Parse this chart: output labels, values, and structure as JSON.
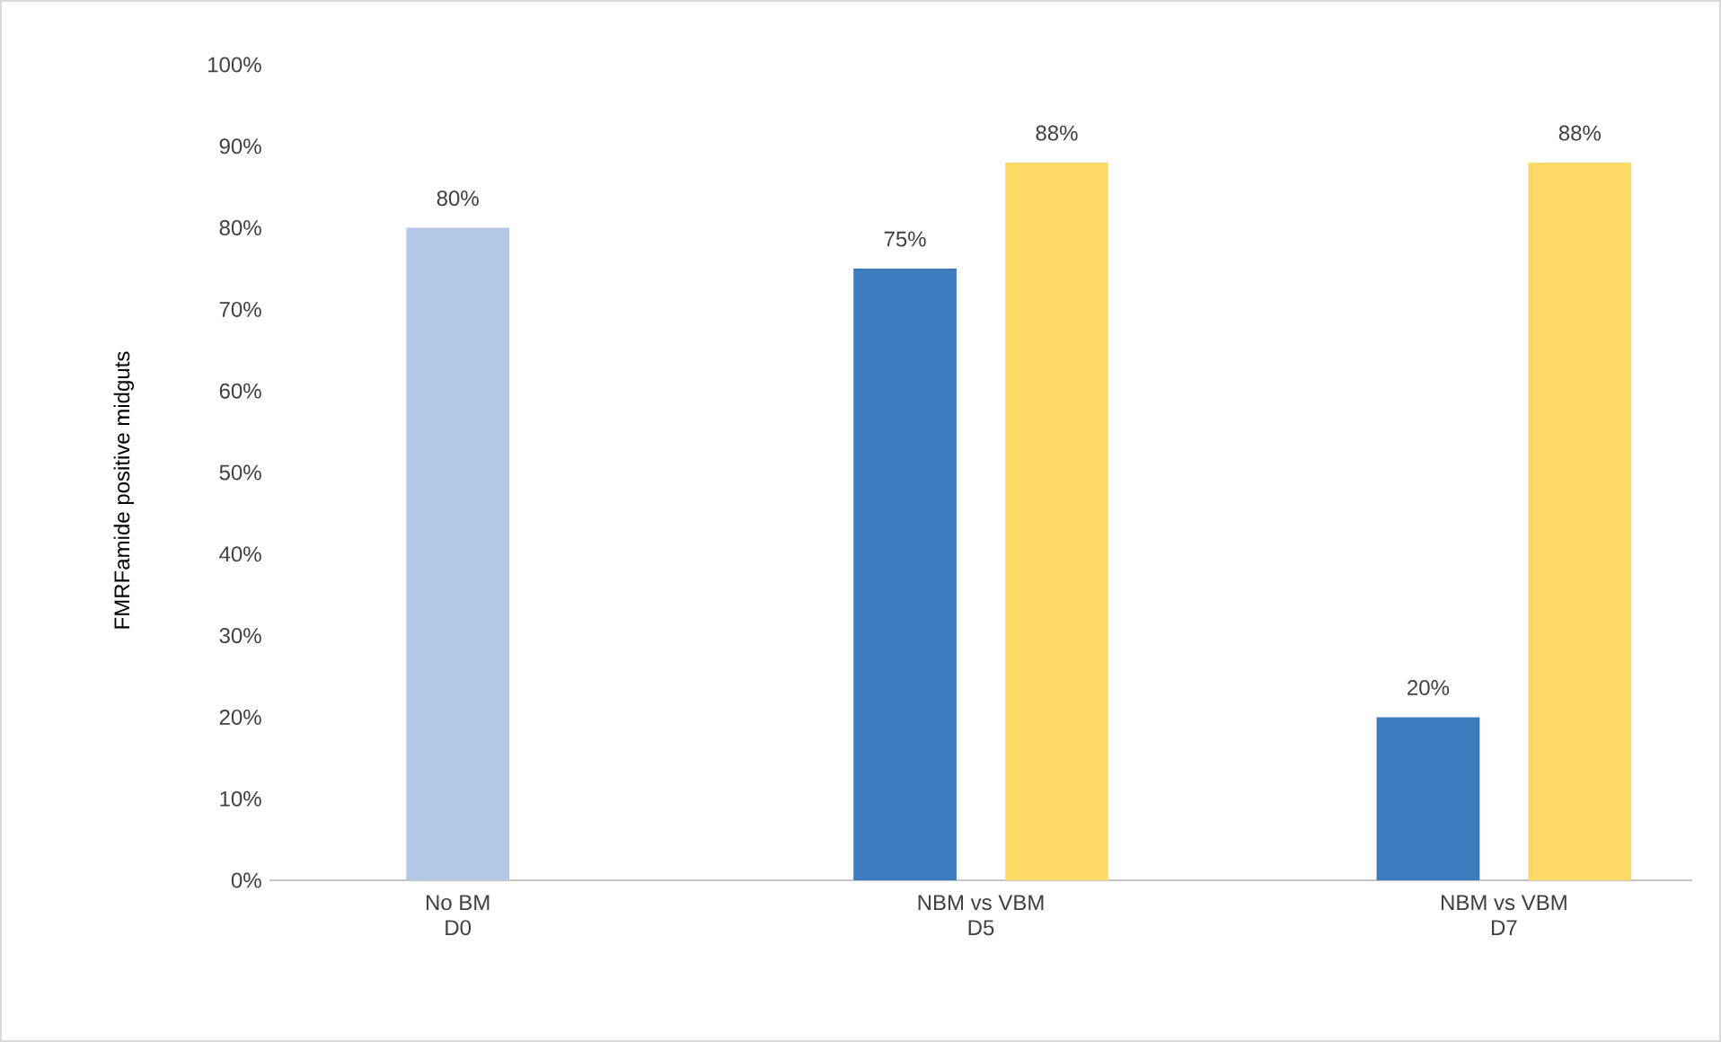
{
  "chart_data": {
    "type": "bar",
    "ylabel": "FMRFamide positive midguts",
    "categories": [
      "No BM D0",
      "NBM vs VBM D5",
      "NBM vs VBM D7"
    ],
    "series": [
      {
        "colors": [
          "#b4c7e7",
          "#3c7dbf",
          "#3c7dbf"
        ],
        "values": [
          80,
          75,
          20
        ],
        "value_labels": [
          "80%",
          "75%",
          "20%"
        ]
      },
      {
        "color": "#ffd966",
        "values": [
          null,
          88,
          88
        ],
        "value_labels": [
          null,
          "88%",
          "88%"
        ]
      }
    ],
    "ylim": [
      0,
      100
    ],
    "yticks": [
      {
        "value": 0,
        "label": "0%"
      },
      {
        "value": 10,
        "label": "10%"
      },
      {
        "value": 20,
        "label": "20%"
      },
      {
        "value": 30,
        "label": "30%"
      },
      {
        "value": 40,
        "label": "40%"
      },
      {
        "value": 50,
        "label": "50%"
      },
      {
        "value": 60,
        "label": "60%"
      },
      {
        "value": 70,
        "label": "70%"
      },
      {
        "value": 80,
        "label": "80%"
      },
      {
        "value": 90,
        "label": "90%"
      },
      {
        "value": 100,
        "label": "100%"
      }
    ],
    "tick_labels": true
  }
}
